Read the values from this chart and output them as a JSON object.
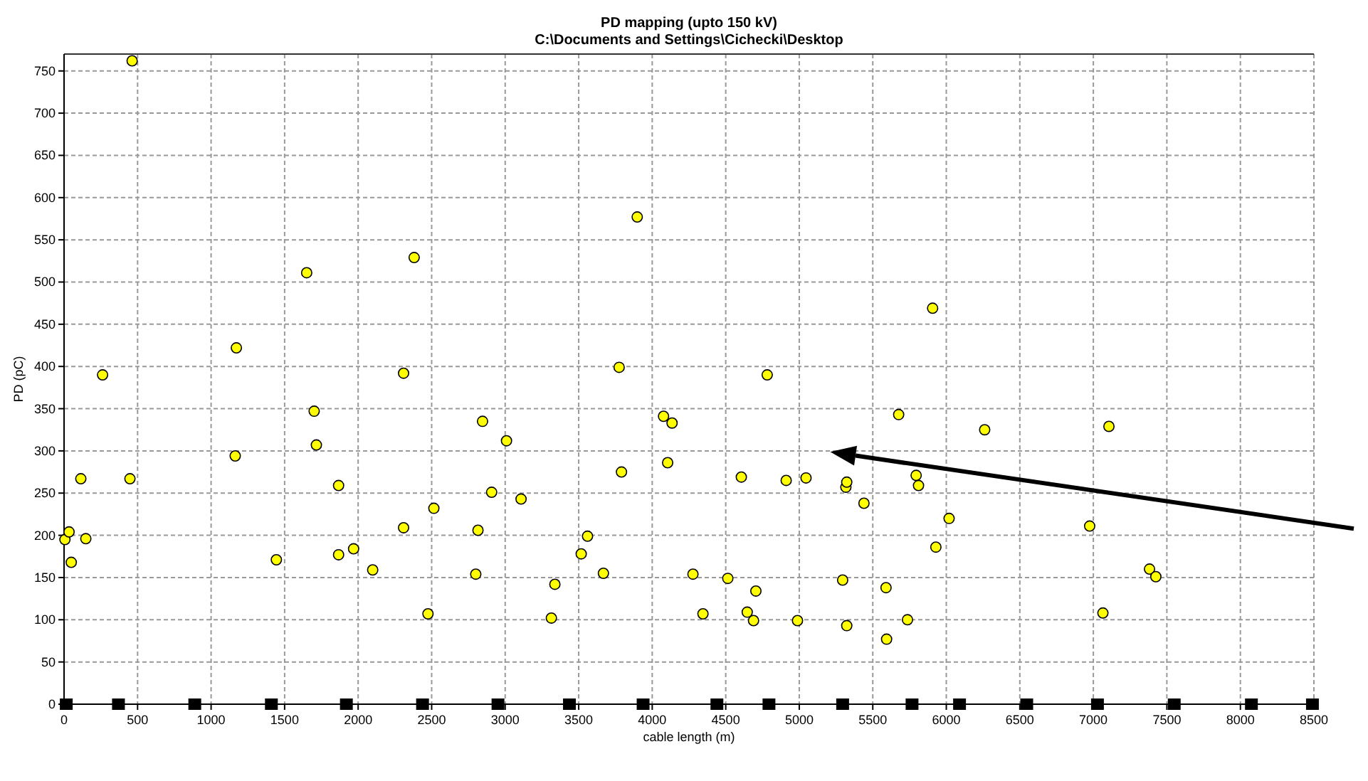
{
  "chart_data": {
    "type": "scatter",
    "title": "PD mapping (upto 150 kV)",
    "subtitle": "C:\\Documents and Settings\\Cichecki\\Desktop",
    "xlabel": "cable length (m)",
    "ylabel": "PD (pC)",
    "xlim": [
      0,
      8500
    ],
    "xticks": [
      0,
      500,
      1000,
      1500,
      2000,
      2500,
      3000,
      3500,
      4000,
      4500,
      5000,
      5500,
      6000,
      6500,
      7000,
      7500,
      8000,
      8500
    ],
    "ylim": [
      0,
      770
    ],
    "yticks": [
      0,
      50,
      100,
      150,
      200,
      250,
      300,
      350,
      400,
      450,
      500,
      550,
      600,
      650,
      700,
      750
    ],
    "grid": true,
    "series": [
      {
        "color": "#ffff00",
        "marker": "circle",
        "x": [
          6,
          34,
          49,
          114,
          148,
          262,
          448,
          463,
          1164,
          1172,
          1444,
          1650,
          1701,
          1716,
          1867,
          1867,
          1969,
          2099,
          2309,
          2309,
          2381,
          2475,
          2515,
          2800,
          2815,
          2846,
          2908,
          3009,
          3108,
          3314,
          3338,
          3517,
          3560,
          3668,
          3775,
          3791,
          3898,
          4077,
          4105,
          4135,
          4277,
          4345,
          4514,
          4606,
          4646,
          4689,
          4705,
          4782,
          4911,
          4988,
          5046,
          5295,
          5317,
          5323,
          5323,
          5440,
          5590,
          5594,
          5676,
          5736,
          5795,
          5811,
          5907,
          5929,
          6019,
          6261,
          6975,
          7065,
          7106,
          7382,
          7425
        ],
        "values": [
          195,
          204,
          168,
          267,
          196,
          390,
          267,
          762,
          294,
          422,
          171,
          511,
          347,
          307,
          259,
          177,
          184,
          159,
          392,
          209,
          529,
          107,
          232,
          154,
          206,
          335,
          251,
          312,
          243,
          102,
          142,
          178,
          199,
          155,
          399,
          275,
          577,
          341,
          286,
          333,
          154,
          107,
          149,
          269,
          109,
          99,
          134,
          390,
          265,
          99,
          268,
          147,
          257,
          263,
          93,
          238,
          138,
          77,
          343,
          100,
          271,
          259,
          469,
          186,
          220,
          325,
          211,
          108,
          329,
          160,
          151
        ]
      },
      {
        "color": "#000000",
        "marker": "square",
        "x": [
          15,
          370,
          889,
          1410,
          1920,
          2438,
          2951,
          3437,
          3938,
          4440,
          4794,
          5295,
          5767,
          6090,
          6547,
          7028,
          7550,
          8075,
          8490
        ],
        "values": [
          0,
          0,
          0,
          0,
          0,
          0,
          0,
          0,
          0,
          0,
          0,
          0,
          0,
          0,
          0,
          0,
          0,
          0,
          0
        ]
      }
    ]
  }
}
